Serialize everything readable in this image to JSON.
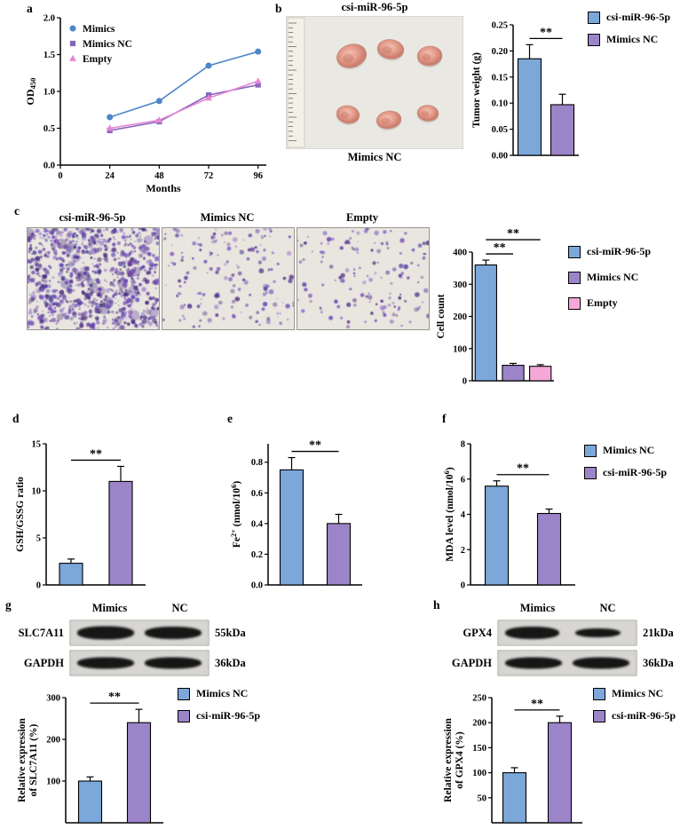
{
  "colors": {
    "blue": "#7ba7d9",
    "purple": "#9c84c9",
    "pink": "#f5a8d8",
    "line_blue": "#4e86c8",
    "line_purple": "#8666bc",
    "line_pink": "#e787d3"
  },
  "panels": {
    "a": {
      "label": "a"
    },
    "b": {
      "label": "b",
      "photo": {
        "top_label": "csi-miR-96-5p",
        "bottom_label": "Mimics NC"
      }
    },
    "c": {
      "label": "c",
      "images": [
        {
          "label": "csi-miR-96-5p",
          "dots": 850,
          "seed": 7
        },
        {
          "label": "Mimics NC",
          "dots": 160,
          "seed": 13
        },
        {
          "label": "Empty",
          "dots": 140,
          "seed": 21
        }
      ]
    },
    "d": {
      "label": "d"
    },
    "e": {
      "label": "e"
    },
    "f": {
      "label": "f"
    },
    "g": {
      "label": "g",
      "blot": {
        "col_labels": [
          "Mimics",
          "NC"
        ],
        "rows": [
          {
            "name": "SLC7A11",
            "kda": "55kDa"
          },
          {
            "name": "GAPDH",
            "kda": "36kDa"
          }
        ]
      }
    },
    "h": {
      "label": "h",
      "blot": {
        "col_labels": [
          "Mimics",
          "NC"
        ],
        "rows": [
          {
            "name": "GPX4",
            "kda": "21kDa"
          },
          {
            "name": "GAPDH",
            "kda": "36kDa"
          }
        ]
      }
    }
  },
  "chart_data": [
    {
      "panel": "a",
      "type": "line",
      "xlabel": "Months",
      "ylabel": "OD_{450}",
      "x": [
        24,
        48,
        72,
        96
      ],
      "xticks": [
        "0",
        "24",
        "48",
        "72",
        "96"
      ],
      "xlim": [
        0,
        100
      ],
      "ylim": [
        0,
        2
      ],
      "yticks": [
        "0.0",
        "0.5",
        "1.0",
        "1.5",
        "2.0"
      ],
      "series": [
        {
          "name": "Mimics",
          "marker": "circle",
          "color": "line_blue",
          "values": [
            0.65,
            0.87,
            1.35,
            1.54
          ]
        },
        {
          "name": "Mimics NC",
          "marker": "square",
          "color": "line_purple",
          "values": [
            0.47,
            0.59,
            0.95,
            1.09
          ]
        },
        {
          "name": "Empty",
          "marker": "triangle",
          "color": "line_pink",
          "values": [
            0.5,
            0.61,
            0.91,
            1.14
          ]
        }
      ]
    },
    {
      "panel": "b",
      "type": "bar",
      "ylabel": "Tumor weight (g)",
      "categories": [
        "csi-miR-96-5p",
        "Mimics NC"
      ],
      "values": [
        0.185,
        0.097
      ],
      "errors": [
        0.027,
        0.02
      ],
      "bar_colors": [
        "blue",
        "purple"
      ],
      "ylim": [
        0,
        0.25
      ],
      "yticks": [
        "0.00",
        "0.05",
        "0.10",
        "0.15",
        "0.20",
        "0.25"
      ],
      "sig": [
        {
          "a": 0,
          "b": 1,
          "label": "**"
        }
      ],
      "legend": [
        {
          "label": "csi-miR-96-5p",
          "color": "blue"
        },
        {
          "label": "Mimics NC",
          "color": "purple"
        }
      ]
    },
    {
      "panel": "c",
      "type": "bar",
      "ylabel": "Cell count",
      "categories": [
        "csi-miR-96-5p",
        "Mimics NC",
        "Empty"
      ],
      "values": [
        360,
        48,
        45
      ],
      "errors": [
        15,
        6,
        5
      ],
      "bar_colors": [
        "blue",
        "purple",
        "pink"
      ],
      "ylim": [
        0,
        400
      ],
      "yticks": [
        "0",
        "100",
        "200",
        "300",
        "400"
      ],
      "sig": [
        {
          "a": 0,
          "b": 1,
          "label": "**",
          "level": 1
        },
        {
          "a": 0,
          "b": 2,
          "label": "**",
          "level": 2
        }
      ],
      "legend": [
        {
          "label": "csi-miR-96-5p",
          "color": "blue"
        },
        {
          "label": "Mimics NC",
          "color": "purple"
        },
        {
          "label": "Empty",
          "color": "pink"
        }
      ]
    },
    {
      "panel": "d",
      "type": "bar",
      "ylabel": "GSH/GSSG ratio",
      "categories": [
        "Mimics NC",
        "csi-miR-96-5p"
      ],
      "values": [
        2.3,
        11
      ],
      "errors": [
        0.45,
        1.6
      ],
      "bar_colors": [
        "blue",
        "purple"
      ],
      "ylim": [
        0,
        15
      ],
      "yticks": [
        "0",
        "5",
        "10",
        "15"
      ],
      "sig": [
        {
          "a": 0,
          "b": 1,
          "label": "**"
        }
      ]
    },
    {
      "panel": "e",
      "type": "bar",
      "ylabel": "Fe^{2+} (nmol/10^{6})",
      "categories": [
        "Mimics NC",
        "csi-miR-96-5p"
      ],
      "values": [
        0.75,
        0.4
      ],
      "errors": [
        0.08,
        0.06
      ],
      "bar_colors": [
        "blue",
        "purple"
      ],
      "ylim": [
        0,
        0.92
      ],
      "yticks": [
        "0.0",
        "0.2",
        "0.4",
        "0.6",
        "0.8"
      ],
      "sig": [
        {
          "a": 0,
          "b": 1,
          "label": "**"
        }
      ]
    },
    {
      "panel": "f",
      "type": "bar",
      "ylabel": "MDA level (nmol/10^{6})",
      "categories": [
        "Mimics NC",
        "csi-miR-96-5p"
      ],
      "values": [
        5.6,
        4.05
      ],
      "errors": [
        0.3,
        0.25
      ],
      "bar_colors": [
        "blue",
        "purple"
      ],
      "ylim": [
        0,
        8
      ],
      "yticks": [
        "0",
        "2",
        "4",
        "6",
        "8"
      ],
      "sig": [
        {
          "a": 0,
          "b": 1,
          "label": "**"
        }
      ],
      "legend": [
        {
          "label": "Mimics NC",
          "color": "blue"
        },
        {
          "label": "csi-miR-96-5p",
          "color": "purple"
        }
      ]
    },
    {
      "panel": "g",
      "type": "bar",
      "ylabel": [
        "Relative expression",
        "of SLC7A11 (%)"
      ],
      "categories": [
        "Mimics NC",
        "csi-miR-96-5p"
      ],
      "values": [
        100,
        240
      ],
      "errors": [
        10,
        32
      ],
      "bar_colors": [
        "blue",
        "purple"
      ],
      "ylim": [
        0,
        300
      ],
      "yticks": [
        "100",
        "200",
        "300"
      ],
      "sig": [
        {
          "a": 0,
          "b": 1,
          "label": "**"
        }
      ],
      "legend": [
        {
          "label": "Mimics NC",
          "color": "blue"
        },
        {
          "label": "csi-miR-96-5p",
          "color": "purple"
        }
      ]
    },
    {
      "panel": "h",
      "type": "bar",
      "ylabel": [
        "Relative expression",
        "of GPX4 (%)"
      ],
      "categories": [
        "Mimics NC",
        "csi-miR-96-5p"
      ],
      "values": [
        100,
        200
      ],
      "errors": [
        10,
        13
      ],
      "bar_colors": [
        "blue",
        "purple"
      ],
      "ylim": [
        0,
        250
      ],
      "yticks": [
        "50",
        "100",
        "150",
        "200",
        "250"
      ],
      "sig": [
        {
          "a": 0,
          "b": 1,
          "label": "**"
        }
      ],
      "legend": [
        {
          "label": "Mimics NC",
          "color": "blue"
        },
        {
          "label": "csi-miR-96-5p",
          "color": "purple"
        }
      ]
    }
  ]
}
